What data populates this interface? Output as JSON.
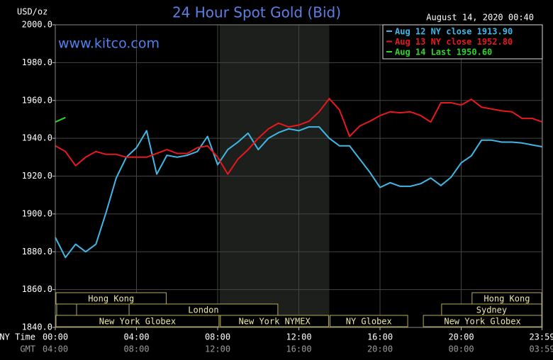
{
  "chart_data": {
    "type": "line",
    "title": "24 Hour Spot Gold (Bid)",
    "subtitle": "August 14, 2020 00:40",
    "watermark": "www.kitco.com",
    "ylabel": "USD/oz",
    "x_row_labels": [
      "NY Time",
      "GMT"
    ],
    "x": [
      0,
      0.5,
      1,
      1.5,
      2,
      2.5,
      3,
      3.5,
      4,
      4.5,
      5,
      5.5,
      6,
      6.5,
      7,
      7.5,
      8,
      8.5,
      9,
      9.5,
      10,
      10.5,
      11,
      11.5,
      12,
      12.5,
      13,
      13.5,
      14,
      14.5,
      15,
      15.5,
      16,
      16.5,
      17,
      17.5,
      18,
      18.5,
      19,
      19.5,
      20,
      20.5,
      21,
      21.5,
      22,
      22.5,
      23,
      23.5,
      24
    ],
    "series": [
      {
        "name": "Aug 12 NY close 1913.90",
        "color": "#3fb8e8",
        "values": [
          1887.6,
          1877,
          1884,
          1880,
          1884,
          1900.7,
          1919,
          1930,
          1935,
          1944,
          1921,
          1931,
          1930,
          1931,
          1933,
          1941,
          1926,
          1934,
          1938,
          1942.7,
          1934,
          1940,
          1943,
          1945,
          1944,
          1946,
          1946,
          1940,
          1936,
          1936,
          1929,
          1922,
          1914,
          1916.5,
          1914.6,
          1914.6,
          1916,
          1919,
          1915,
          1919.4,
          1927,
          1930.7,
          1939,
          1939,
          1938,
          1938,
          1937.5,
          1936.5,
          1935.5
        ]
      },
      {
        "name": "Aug 13 NY close 1952.80",
        "color": "#e8191c",
        "values": [
          1936,
          1933,
          1925.5,
          1930,
          1933,
          1931.5,
          1931.5,
          1930,
          1930,
          1930,
          1932,
          1934,
          1932,
          1932,
          1935,
          1936,
          1930,
          1921,
          1929,
          1934,
          1940,
          1945,
          1948,
          1946,
          1947,
          1949,
          1954,
          1961,
          1955,
          1941,
          1946.5,
          1949,
          1952,
          1954,
          1953.5,
          1954,
          1952,
          1948.6,
          1958.8,
          1958.8,
          1957.6,
          1960.6,
          1956.5,
          1955.5,
          1954.5,
          1954,
          1950.5,
          1950.5,
          1948.6
        ]
      },
      {
        "name": "Aug 14 Last 1950.60",
        "color": "#2fd42f",
        "values": [
          1948.6,
          1951,
          null,
          null,
          null,
          null,
          null,
          null,
          null,
          null,
          null,
          null,
          null,
          null,
          null,
          null,
          null,
          null,
          null,
          null,
          null,
          null,
          null,
          null,
          null,
          null,
          null,
          null,
          null,
          null,
          null,
          null,
          null,
          null,
          null,
          null,
          null,
          null,
          null,
          null,
          null,
          null,
          null,
          null,
          null,
          null,
          null,
          null,
          null
        ]
      }
    ],
    "xlim": [
      0,
      24
    ],
    "xticks": [
      {
        "value": 0,
        "label": "00:00"
      },
      {
        "value": 4,
        "label": "04:00"
      },
      {
        "value": 8,
        "label": "08:00"
      },
      {
        "value": 12,
        "label": "12:00"
      },
      {
        "value": 16,
        "label": "16:00"
      },
      {
        "value": 20,
        "label": "20:00"
      },
      {
        "value": 23.983,
        "label": "23:59"
      }
    ],
    "gmt_labels": [
      "04:00",
      "08:00",
      "12:00",
      "16:00",
      "20:00",
      "00:00",
      "03:59"
    ],
    "ylim": [
      1840,
      2000
    ],
    "yticks": [
      {
        "value": 1840,
        "label": "1840.0"
      },
      {
        "value": 1860,
        "label": "1860.0"
      },
      {
        "value": 1880,
        "label": "1880.0"
      },
      {
        "value": 1900,
        "label": "1900.0"
      },
      {
        "value": 1920,
        "label": "1920.0"
      },
      {
        "value": 1940,
        "label": "1940.0"
      },
      {
        "value": 1960,
        "label": "1960.0"
      },
      {
        "value": 1980,
        "label": "1980.0"
      },
      {
        "value": 2000,
        "label": "2000.0"
      }
    ],
    "grid": true,
    "legend": "upper right",
    "session_rows": [
      [
        {
          "label": "Hong Kong",
          "start": 0,
          "end": 5.5
        },
        {
          "label": "Hong Kong",
          "start": 20.5,
          "end": 24
        }
      ],
      [
        {
          "label": "London",
          "start": 3.6,
          "end": 11
        },
        {
          "label": "Sydney",
          "start": 19,
          "end": 24
        }
      ],
      [
        {
          "label": "New York Globex",
          "start": 0,
          "end": 8.1
        },
        {
          "label": "New York NYMEX",
          "start": 8.1,
          "end": 13.5,
          "shaded": true
        },
        {
          "label": "NY Globex",
          "start": 13.5,
          "end": 17.4
        },
        {
          "label": "New York Globex",
          "start": 18.1,
          "end": 24
        }
      ]
    ]
  }
}
